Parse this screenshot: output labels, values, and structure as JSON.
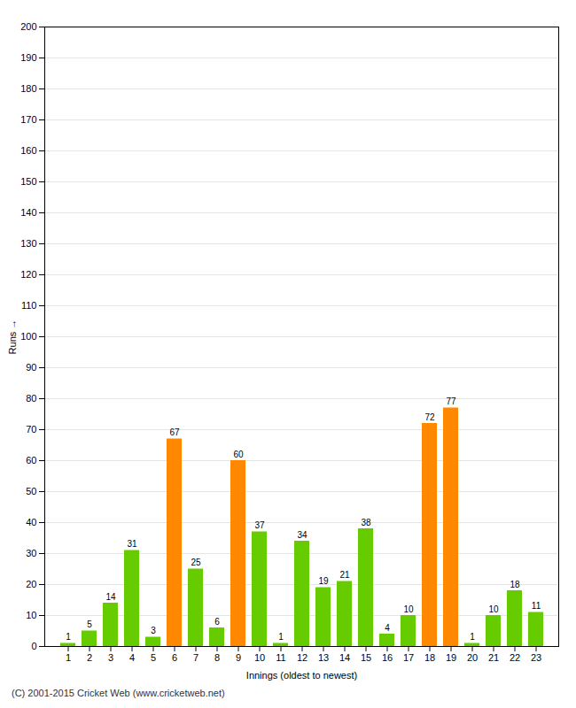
{
  "chart_data": {
    "type": "bar",
    "xlabel": "Innings (oldest to newest)",
    "ylabel": "Runs",
    "categories": [
      1,
      2,
      3,
      4,
      5,
      6,
      7,
      8,
      9,
      10,
      11,
      12,
      13,
      14,
      15,
      16,
      17,
      18,
      19,
      20,
      21,
      22,
      23
    ],
    "values": [
      1,
      5,
      14,
      31,
      3,
      67,
      25,
      6,
      60,
      37,
      1,
      34,
      19,
      21,
      38,
      4,
      10,
      72,
      77,
      1,
      10,
      18,
      11
    ],
    "colors": [
      "#66cc00",
      "#66cc00",
      "#66cc00",
      "#66cc00",
      "#66cc00",
      "#ff8800",
      "#66cc00",
      "#66cc00",
      "#ff8800",
      "#66cc00",
      "#66cc00",
      "#66cc00",
      "#66cc00",
      "#66cc00",
      "#66cc00",
      "#66cc00",
      "#66cc00",
      "#ff8800",
      "#ff8800",
      "#66cc00",
      "#66cc00",
      "#66cc00",
      "#66cc00"
    ],
    "ylim": [
      0,
      200
    ],
    "yticks": [
      0,
      10,
      20,
      30,
      40,
      50,
      60,
      70,
      80,
      90,
      100,
      110,
      120,
      130,
      140,
      150,
      160,
      170,
      180,
      190,
      200
    ],
    "grid": true,
    "data_labels": true,
    "annotations": [
      "(C) 2001-2015 Cricket Web (www.cricketweb.net)"
    ]
  }
}
